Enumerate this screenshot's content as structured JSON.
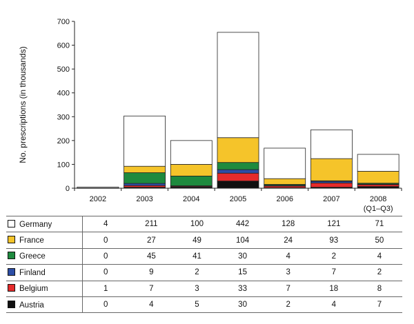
{
  "chart_data": {
    "type": "bar",
    "stacked": true,
    "ylabel": "No. prescriptions (in thousands)",
    "ylim": [
      0,
      700
    ],
    "yticks": [
      0,
      100,
      200,
      300,
      400,
      500,
      600,
      700
    ],
    "categories": [
      "2002",
      "2003",
      "2004",
      "2005",
      "2006",
      "2007",
      "2008"
    ],
    "category_sublabels": [
      "",
      "",
      "",
      "",
      "",
      "",
      "(Q1–Q3)"
    ],
    "series": [
      {
        "name": "Austria",
        "color": "#111111",
        "values": [
          0,
          4,
          5,
          30,
          2,
          4,
          7
        ]
      },
      {
        "name": "Belgium",
        "color": "#e52b2b",
        "values": [
          1,
          7,
          3,
          33,
          7,
          18,
          8
        ]
      },
      {
        "name": "Finland",
        "color": "#2c4ea6",
        "values": [
          0,
          9,
          2,
          15,
          3,
          7,
          2
        ]
      },
      {
        "name": "Greece",
        "color": "#1e8a3e",
        "values": [
          0,
          45,
          41,
          30,
          4,
          2,
          4
        ]
      },
      {
        "name": "France",
        "color": "#f5c42a",
        "values": [
          0,
          27,
          49,
          104,
          24,
          93,
          50
        ]
      },
      {
        "name": "Germany",
        "color": "#ffffff",
        "values": [
          4,
          211,
          100,
          442,
          128,
          121,
          71
        ]
      }
    ],
    "table_order": [
      "Germany",
      "France",
      "Greece",
      "Finland",
      "Belgium",
      "Austria"
    ],
    "grid": false,
    "legend": "data table below chart"
  }
}
